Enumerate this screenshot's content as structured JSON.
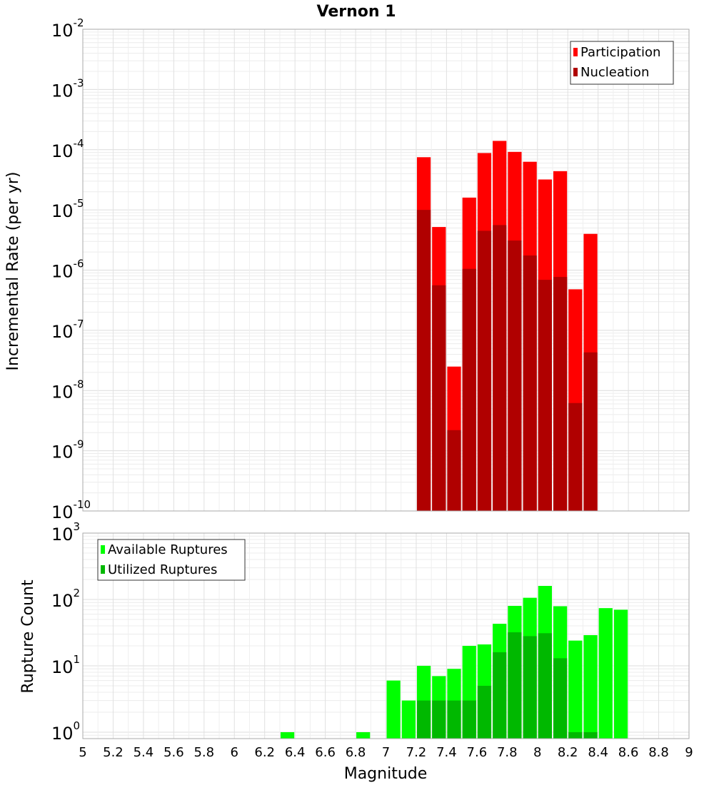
{
  "chart_data": [
    {
      "type": "bar",
      "title": "Vernon 1",
      "xlabel": "Magnitude",
      "ylabel": "Incremental Rate (per yr)",
      "yscale": "log",
      "xlim": [
        5,
        9
      ],
      "ylim": [
        1e-10,
        0.01
      ],
      "ytick_exponents": [
        "-10",
        "-9",
        "-8",
        "-7",
        "-6",
        "-5",
        "-4",
        "-3",
        "-2"
      ],
      "ytick_base": "10",
      "bin_width": 0.1,
      "x": [
        7.25,
        7.35,
        7.45,
        7.55,
        7.65,
        7.75,
        7.85,
        7.95,
        8.05,
        8.15,
        8.25,
        8.35
      ],
      "series": [
        {
          "name": "Participation",
          "color": "#ff0000",
          "values": [
            7.5e-05,
            5.2e-06,
            2.5e-08,
            1.6e-05,
            8.8e-05,
            0.00014,
            9.2e-05,
            6.3e-05,
            3.2e-05,
            4.4e-05,
            4.8e-07,
            4e-06
          ]
        },
        {
          "name": "Nucleation",
          "color": "#b00000",
          "values": [
            1e-05,
            5.6e-07,
            2.2e-09,
            1.05e-06,
            4.5e-06,
            5.6e-06,
            3.1e-06,
            1.75e-06,
            6.9e-07,
            7.7e-07,
            6.2e-09,
            4.3e-08
          ]
        }
      ],
      "legend": {
        "position": "top-right",
        "entries": [
          "Participation",
          "Nucleation"
        ]
      }
    },
    {
      "type": "bar",
      "xlabel": "Magnitude",
      "ylabel": "Rupture Count",
      "yscale": "log",
      "xlim": [
        5,
        9
      ],
      "ylim": [
        0.8,
        1000
      ],
      "ytick_exponents": [
        "0",
        "1",
        "2",
        "3"
      ],
      "ytick_base": "10",
      "xticks": [
        "5",
        "5.2",
        "5.4",
        "5.6",
        "5.8",
        "6",
        "6.2",
        "6.4",
        "6.6",
        "6.8",
        "7",
        "7.2",
        "7.4",
        "7.6",
        "7.8",
        "8",
        "8.2",
        "8.4",
        "8.6",
        "8.8",
        "9"
      ],
      "bin_width": 0.1,
      "x": [
        6.35,
        6.85,
        7.05,
        7.15,
        7.25,
        7.35,
        7.45,
        7.55,
        7.65,
        7.75,
        7.85,
        7.95,
        8.05,
        8.15,
        8.25,
        8.35,
        8.45,
        8.55
      ],
      "series": [
        {
          "name": "Available Ruptures",
          "color": "#00ff00",
          "values": [
            1,
            1,
            6,
            3,
            10,
            7,
            9,
            20,
            21,
            43,
            80,
            106,
            160,
            79,
            24,
            29,
            74,
            70
          ]
        },
        {
          "name": "Utilized Ruptures",
          "color": "#00b800",
          "values": [
            0,
            0,
            0,
            0,
            3,
            3,
            3,
            3,
            5,
            16,
            32,
            28,
            31,
            13,
            1,
            1,
            0,
            0
          ]
        }
      ],
      "legend": {
        "position": "top-left",
        "entries": [
          "Available Ruptures",
          "Utilized Ruptures"
        ]
      }
    }
  ]
}
